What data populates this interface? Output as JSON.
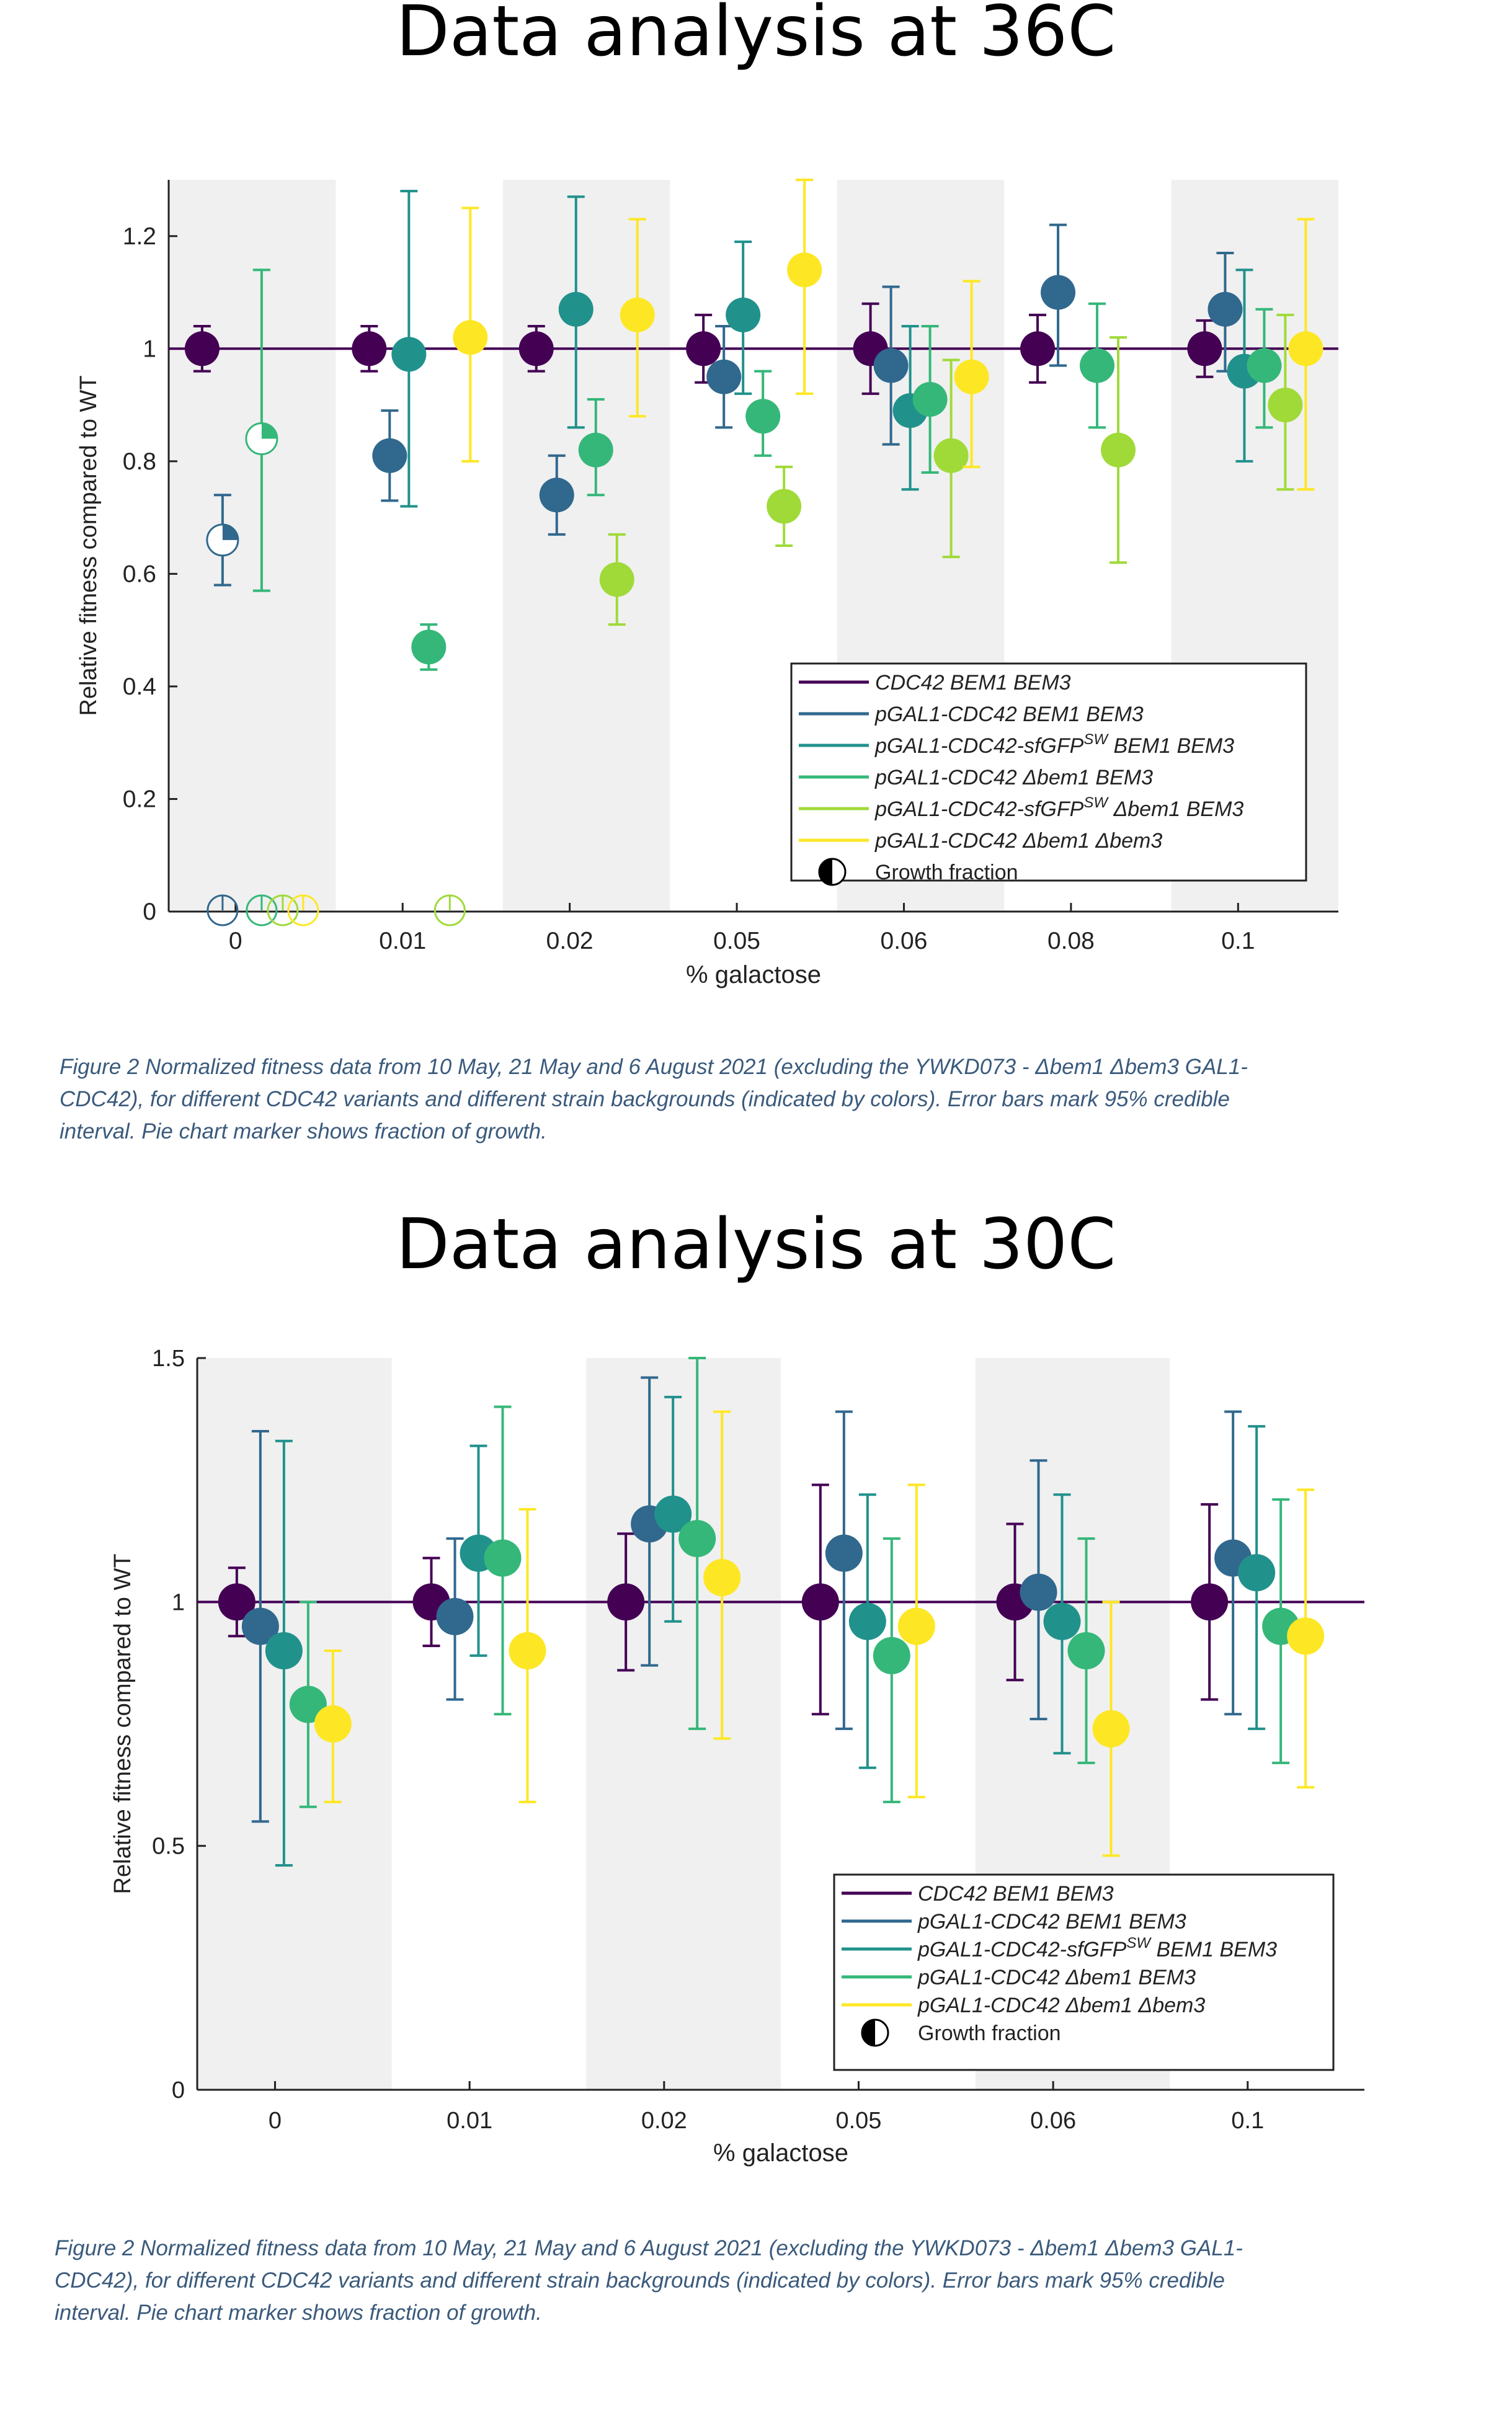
{
  "sections": [
    {
      "heading": "Data analysis at 36C",
      "caption": [
        "Figure 2 Normalized fitness data from 10 May, 21 May and 6 August 2021 (excluding the YWKD073 - Δbem1 Δbem3 GAL1-",
        "CDC42), for different CDC42 variants and different strain backgrounds (indicated by colors). Error bars mark 95% credible",
        "interval. Pie chart marker shows fraction of growth."
      ]
    },
    {
      "heading": "Data analysis at 30C",
      "caption": [
        "Figure 2 Normalized fitness data from 10 May, 21 May and 6 August 2021 (excluding the YWKD073 - Δbem1 Δbem3 GAL1-",
        "CDC42), for different CDC42 variants and different strain backgrounds (indicated by colors). Error bars mark 95% credible",
        "interval. Pie chart marker shows fraction of growth."
      ]
    }
  ],
  "chart_data": [
    {
      "type": "scatter",
      "xlabel": "% galactose",
      "ylabel": "Relative fitness compared to WT",
      "categories": [
        "0",
        "0.01",
        "0.02",
        "0.05",
        "0.06",
        "0.08",
        "0.1"
      ],
      "ylim": [
        0,
        1.3
      ],
      "yticks": [
        0,
        0.2,
        0.4,
        0.6,
        0.8,
        1,
        1.2
      ],
      "reference_line": 1,
      "shaded_categories": [
        0,
        2,
        4,
        6
      ],
      "legend_position": "lower-right",
      "legend_extra": "Growth fraction",
      "series": [
        {
          "name": "CDC42 BEM1 BEM3",
          "color": "#440154",
          "points": [
            {
              "c": 0,
              "y": 1.0,
              "lo": 0.96,
              "hi": 1.04
            },
            {
              "c": 1,
              "y": 1.0,
              "lo": 0.96,
              "hi": 1.04
            },
            {
              "c": 2,
              "y": 1.0,
              "lo": 0.96,
              "hi": 1.04
            },
            {
              "c": 3,
              "y": 1.0,
              "lo": 0.94,
              "hi": 1.06
            },
            {
              "c": 4,
              "y": 1.0,
              "lo": 0.92,
              "hi": 1.08
            },
            {
              "c": 5,
              "y": 1.0,
              "lo": 0.94,
              "hi": 1.06
            },
            {
              "c": 6,
              "y": 1.0,
              "lo": 0.95,
              "hi": 1.05
            }
          ]
        },
        {
          "name": "pGAL1-CDC42 BEM1 BEM3",
          "color": "#31688e",
          "points": [
            {
              "c": 0,
              "y": 0.66,
              "lo": 0.58,
              "hi": 0.74,
              "growth": 0.25
            },
            {
              "c": 0,
              "y": 0,
              "growth": 0
            },
            {
              "c": 1,
              "y": 0.81,
              "lo": 0.73,
              "hi": 0.89
            },
            {
              "c": 2,
              "y": 0.74,
              "lo": 0.67,
              "hi": 0.81
            },
            {
              "c": 3,
              "y": 0.95,
              "lo": 0.86,
              "hi": 1.04
            },
            {
              "c": 4,
              "y": 0.97,
              "lo": 0.83,
              "hi": 1.11
            },
            {
              "c": 5,
              "y": 1.1,
              "lo": 0.97,
              "hi": 1.22
            },
            {
              "c": 6,
              "y": 1.07,
              "lo": 0.96,
              "hi": 1.17
            }
          ]
        },
        {
          "name": "pGAL1-CDC42-sfGFP",
          "name_superscript": "SW",
          "name_suffix": "BEM1 BEM3",
          "color": "#21918c",
          "points": [
            {
              "c": 1,
              "y": 0.99,
              "lo": 0.72,
              "hi": 1.28
            },
            {
              "c": 2,
              "y": 1.07,
              "lo": 0.86,
              "hi": 1.27
            },
            {
              "c": 3,
              "y": 1.06,
              "lo": 0.92,
              "hi": 1.19
            },
            {
              "c": 4,
              "y": 0.89,
              "lo": 0.75,
              "hi": 1.04
            },
            {
              "c": 6,
              "y": 0.96,
              "lo": 0.8,
              "hi": 1.14
            }
          ]
        },
        {
          "name": "pGAL1-CDC42 Δbem1 BEM3",
          "color": "#35b779",
          "points": [
            {
              "c": 0,
              "y": 0.84,
              "lo": 0.57,
              "hi": 1.14,
              "growth": 0.25
            },
            {
              "c": 0,
              "y": 0,
              "growth": 0
            },
            {
              "c": 1,
              "y": 0.47,
              "lo": 0.43,
              "hi": 0.51
            },
            {
              "c": 2,
              "y": 0.82,
              "lo": 0.74,
              "hi": 0.91
            },
            {
              "c": 3,
              "y": 0.88,
              "lo": 0.81,
              "hi": 0.96
            },
            {
              "c": 4,
              "y": 0.91,
              "lo": 0.78,
              "hi": 1.04
            },
            {
              "c": 5,
              "y": 0.97,
              "lo": 0.86,
              "hi": 1.08
            },
            {
              "c": 6,
              "y": 0.97,
              "lo": 0.86,
              "hi": 1.07
            }
          ]
        },
        {
          "name": "pGAL1-CDC42-sfGFP",
          "name_superscript": "SW",
          "name_suffix": "Δbem1 BEM3",
          "color": "#a0da39",
          "points": [
            {
              "c": 0,
              "y": 0,
              "growth": 0
            },
            {
              "c": 1,
              "y": 0,
              "growth": 0
            },
            {
              "c": 2,
              "y": 0.59,
              "lo": 0.51,
              "hi": 0.67
            },
            {
              "c": 3,
              "y": 0.72,
              "lo": 0.65,
              "hi": 0.79
            },
            {
              "c": 4,
              "y": 0.81,
              "lo": 0.63,
              "hi": 0.98
            },
            {
              "c": 5,
              "y": 0.82,
              "lo": 0.62,
              "hi": 1.02
            },
            {
              "c": 6,
              "y": 0.9,
              "lo": 0.75,
              "hi": 1.06
            }
          ]
        },
        {
          "name": "pGAL1-CDC42 Δbem1 Δbem3",
          "color": "#fde725",
          "points": [
            {
              "c": 0,
              "y": 0,
              "growth": 0
            },
            {
              "c": 1,
              "y": 1.02,
              "lo": 0.8,
              "hi": 1.25
            },
            {
              "c": 2,
              "y": 1.06,
              "lo": 0.88,
              "hi": 1.23
            },
            {
              "c": 3,
              "y": 1.14,
              "lo": 0.92,
              "hi": 1.3
            },
            {
              "c": 4,
              "y": 0.95,
              "lo": 0.79,
              "hi": 1.12
            },
            {
              "c": 6,
              "y": 1.0,
              "lo": 0.75,
              "hi": 1.23
            }
          ]
        }
      ]
    },
    {
      "type": "scatter",
      "xlabel": "% galactose",
      "ylabel": "Relative fitness compared to WT",
      "categories": [
        "0",
        "0.01",
        "0.02",
        "0.05",
        "0.06",
        "0.1"
      ],
      "ylim": [
        0,
        1.5
      ],
      "yticks": [
        0,
        0.5,
        1,
        1.5
      ],
      "reference_line": 1,
      "shaded_categories": [
        0,
        2,
        4
      ],
      "legend_position": "lower-right",
      "legend_extra": "Growth fraction",
      "series": [
        {
          "name": "CDC42 BEM1 BEM3",
          "color": "#440154",
          "points": [
            {
              "c": 0,
              "y": 1.0,
              "lo": 0.93,
              "hi": 1.07
            },
            {
              "c": 1,
              "y": 1.0,
              "lo": 0.91,
              "hi": 1.09
            },
            {
              "c": 2,
              "y": 1.0,
              "lo": 0.86,
              "hi": 1.14
            },
            {
              "c": 3,
              "y": 1.0,
              "lo": 0.77,
              "hi": 1.24
            },
            {
              "c": 4,
              "y": 1.0,
              "lo": 0.84,
              "hi": 1.16
            },
            {
              "c": 5,
              "y": 1.0,
              "lo": 0.8,
              "hi": 1.2
            }
          ]
        },
        {
          "name": "pGAL1-CDC42 BEM1 BEM3",
          "color": "#31688e",
          "points": [
            {
              "c": 0,
              "y": 0.95,
              "lo": 0.55,
              "hi": 1.35
            },
            {
              "c": 1,
              "y": 0.97,
              "lo": 0.8,
              "hi": 1.13
            },
            {
              "c": 2,
              "y": 1.16,
              "lo": 0.87,
              "hi": 1.46
            },
            {
              "c": 3,
              "y": 1.1,
              "lo": 0.74,
              "hi": 1.39
            },
            {
              "c": 4,
              "y": 1.02,
              "lo": 0.76,
              "hi": 1.29
            },
            {
              "c": 5,
              "y": 1.09,
              "lo": 0.77,
              "hi": 1.39
            }
          ]
        },
        {
          "name": "pGAL1-CDC42-sfGFP",
          "name_superscript": "SW",
          "name_suffix": "BEM1 BEM3",
          "color": "#21918c",
          "points": [
            {
              "c": 0,
              "y": 0.9,
              "lo": 0.46,
              "hi": 1.33
            },
            {
              "c": 1,
              "y": 1.1,
              "lo": 0.89,
              "hi": 1.32
            },
            {
              "c": 2,
              "y": 1.18,
              "lo": 0.96,
              "hi": 1.42
            },
            {
              "c": 3,
              "y": 0.96,
              "lo": 0.66,
              "hi": 1.22
            },
            {
              "c": 4,
              "y": 0.96,
              "lo": 0.69,
              "hi": 1.22
            },
            {
              "c": 5,
              "y": 1.06,
              "lo": 0.74,
              "hi": 1.36
            }
          ]
        },
        {
          "name": "pGAL1-CDC42 Δbem1 BEM3",
          "color": "#35b779",
          "points": [
            {
              "c": 0,
              "y": 0.79,
              "lo": 0.58,
              "hi": 1.0
            },
            {
              "c": 1,
              "y": 1.09,
              "lo": 0.77,
              "hi": 1.4
            },
            {
              "c": 2,
              "y": 1.13,
              "lo": 0.74,
              "hi": 1.5
            },
            {
              "c": 3,
              "y": 0.89,
              "lo": 0.59,
              "hi": 1.13
            },
            {
              "c": 4,
              "y": 0.9,
              "lo": 0.67,
              "hi": 1.13
            },
            {
              "c": 5,
              "y": 0.95,
              "lo": 0.67,
              "hi": 1.21
            }
          ]
        },
        {
          "name": "pGAL1-CDC42 Δbem1 Δbem3",
          "color": "#fde725",
          "points": [
            {
              "c": 0,
              "y": 0.75,
              "lo": 0.59,
              "hi": 0.9
            },
            {
              "c": 1,
              "y": 0.9,
              "lo": 0.59,
              "hi": 1.19
            },
            {
              "c": 2,
              "y": 1.05,
              "lo": 0.72,
              "hi": 1.39
            },
            {
              "c": 3,
              "y": 0.95,
              "lo": 0.6,
              "hi": 1.24
            },
            {
              "c": 4,
              "y": 0.74,
              "lo": 0.48,
              "hi": 1.0
            },
            {
              "c": 5,
              "y": 0.93,
              "lo": 0.62,
              "hi": 1.23
            }
          ]
        }
      ]
    }
  ]
}
